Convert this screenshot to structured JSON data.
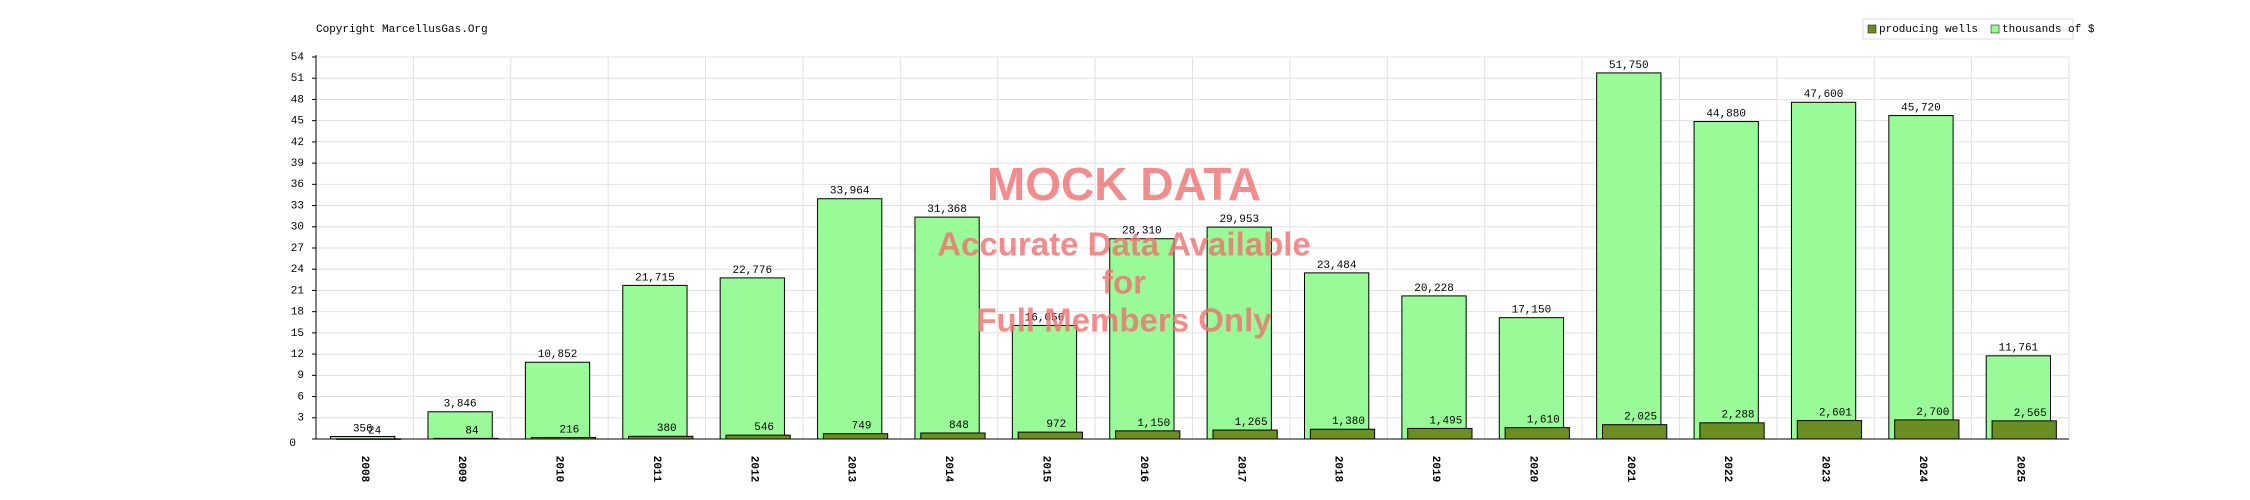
{
  "chart_data": {
    "type": "bar",
    "copyright": "Copyright MarcellusGas.Org",
    "annotations": [
      "MOCK DATA",
      "Accurate Data Available",
      "for",
      "Full Members Only"
    ],
    "categories": [
      "2008",
      "2009",
      "2010",
      "2011",
      "2012",
      "2013",
      "2014",
      "2015",
      "2016",
      "2017",
      "2018",
      "2019",
      "2020",
      "2021",
      "2022",
      "2023",
      "2024",
      "2025"
    ],
    "series": [
      {
        "name": "producing wells",
        "color": "#6b8e23",
        "values": [
          0.024,
          0.084,
          0.216,
          0.38,
          0.546,
          0.749,
          0.848,
          0.972,
          1.15,
          1.265,
          1.38,
          1.495,
          1.61,
          2.025,
          2.288,
          2.601,
          2.7,
          2.565
        ],
        "value_labels": [
          "24",
          "84",
          "216",
          "380",
          "546",
          "749",
          "848",
          "972",
          "1,150",
          "1,265",
          "1,380",
          "1,495",
          "1,610",
          "2,025",
          "2,288",
          "2,601",
          "2,700",
          "2,565"
        ]
      },
      {
        "name": "thousands of $",
        "color": "#98fb98",
        "values": [
          0.356,
          3.846,
          10.852,
          21.715,
          22.776,
          33.964,
          31.368,
          16.056,
          28.31,
          29.953,
          23.484,
          20.228,
          17.15,
          51.75,
          44.88,
          47.6,
          45.72,
          11.761
        ],
        "value_labels": [
          "356",
          "3,846",
          "10,852",
          "21,715",
          "22,776",
          "33,964",
          "31,368",
          "16,056",
          "28,310",
          "29,953",
          "23,484",
          "20,228",
          "17,150",
          "51,750",
          "44,880",
          "47,600",
          "45,720",
          "11,761"
        ]
      }
    ],
    "ylim": [
      0,
      54
    ],
    "yticks": [
      0,
      3,
      6,
      9,
      12,
      15,
      18,
      21,
      24,
      27,
      30,
      33,
      36,
      39,
      42,
      45,
      48,
      51,
      54
    ],
    "grid": true
  }
}
